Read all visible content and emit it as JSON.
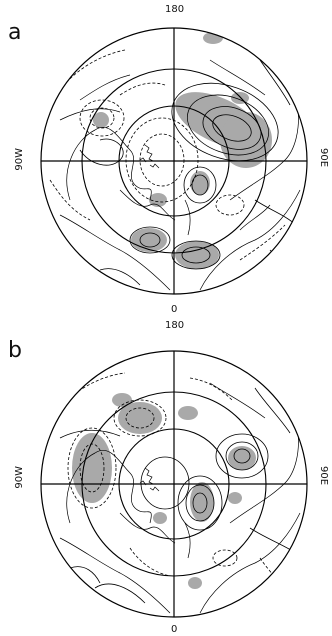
{
  "panels": [
    {
      "letter": "a",
      "labels": {
        "top": "180",
        "bottom": "0",
        "left": "90W",
        "right": "90E"
      },
      "shading_color": "#a9a9a9"
    },
    {
      "letter": "b",
      "labels": {
        "top": "180",
        "bottom": "0",
        "left": "90W",
        "right": "90E"
      },
      "shading_color": "#a9a9a9"
    }
  ]
}
